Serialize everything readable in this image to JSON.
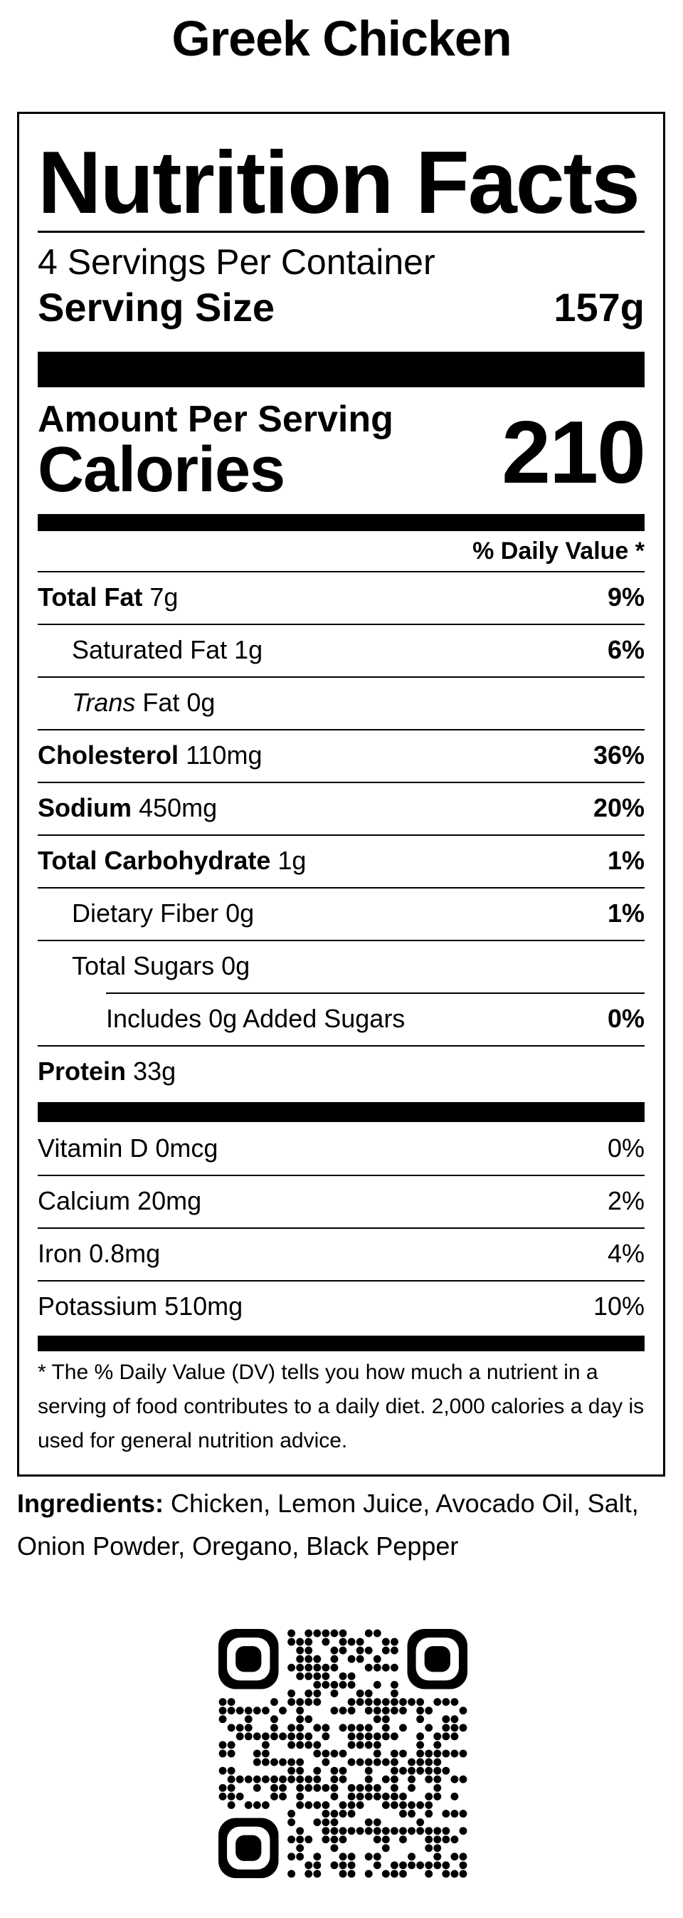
{
  "title": "Greek Chicken",
  "label": {
    "heading": "Nutrition Facts",
    "servings_per_container": "4 Servings Per Container",
    "serving_size_label": "Serving Size",
    "serving_size_value": "157g",
    "amount_per_serving": "Amount Per Serving",
    "calories_label": "Calories",
    "calories_value": "210",
    "daily_value_header": "% Daily Value *",
    "nutrients": [
      {
        "name": "Total Fat",
        "amount": "7g",
        "dv": "9%"
      },
      {
        "name": "Saturated Fat",
        "amount": "1g",
        "dv": "6%"
      },
      {
        "name_italic": "Trans",
        "name": "Fat",
        "amount": "0g",
        "dv": ""
      },
      {
        "name": "Cholesterol",
        "amount": "110mg",
        "dv": "36%"
      },
      {
        "name": "Sodium",
        "amount": "450mg",
        "dv": "20%"
      },
      {
        "name": "Total Carbohydrate",
        "amount": "1g",
        "dv": "1%"
      },
      {
        "name": "Dietary Fiber",
        "amount": "0g",
        "dv": "1%"
      },
      {
        "name": "Total Sugars",
        "amount": "0g",
        "dv": ""
      },
      {
        "name": "Includes 0g Added Sugars",
        "amount": "",
        "dv": "0%"
      },
      {
        "name": "Protein",
        "amount": "33g",
        "dv": ""
      }
    ],
    "vitamins": [
      {
        "name": "Vitamin D",
        "amount": "0mcg",
        "dv": "0%"
      },
      {
        "name": "Calcium",
        "amount": "20mg",
        "dv": "2%"
      },
      {
        "name": "Iron",
        "amount": "0.8mg",
        "dv": "4%"
      },
      {
        "name": "Potassium",
        "amount": "510mg",
        "dv": "10%"
      }
    ],
    "footnote": "* The % Daily Value (DV) tells you how much a nutrient in a serving of food contributes to a daily diet. 2,000 calories a day is used for general nutrition advice."
  },
  "ingredients": {
    "label": "Ingredients:",
    "text": "Chicken, Lemon Juice, Avocado Oil, Salt, Onion Powder, Oregano, Black Pepper"
  },
  "qr_icon": "qr-code-icon"
}
